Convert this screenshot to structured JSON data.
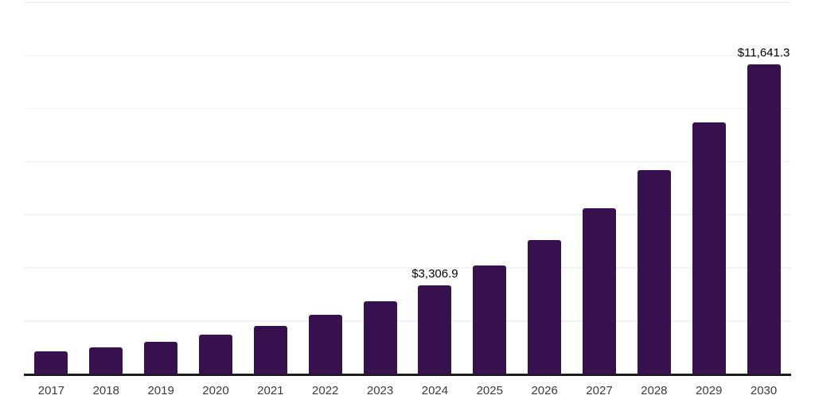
{
  "chart_data": {
    "type": "bar",
    "title": "",
    "xlabel": "",
    "ylabel": "",
    "categories": [
      "2017",
      "2018",
      "2019",
      "2020",
      "2021",
      "2022",
      "2023",
      "2024",
      "2025",
      "2026",
      "2027",
      "2028",
      "2029",
      "2030"
    ],
    "values": [
      827,
      976,
      1194,
      1463,
      1791,
      2210,
      2716,
      3306.9,
      4080,
      5032,
      6208,
      7658,
      9447,
      11641.3
    ],
    "value_labels": [
      "",
      "",
      "",
      "",
      "",
      "",
      "",
      "$3,306.9",
      "",
      "",
      "",
      "",
      "",
      "$11,641.3"
    ],
    "ylim": [
      0,
      14000
    ],
    "grid_step": 2000,
    "grid": true,
    "legend": "none",
    "bar_color": "#36114D",
    "grid_color": "#F2F2F2",
    "axis_color": "#1C1C1C",
    "tick_label_color": "#3B3B3B",
    "data_label_color": "#000000"
  }
}
